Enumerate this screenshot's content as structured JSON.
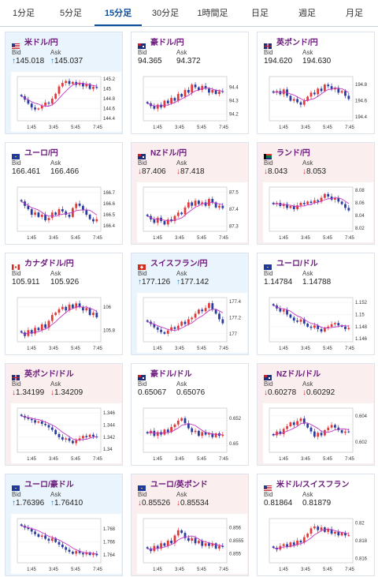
{
  "tabs": [
    "1分足",
    "5分足",
    "15分足",
    "30分足",
    "1時間足",
    "日足",
    "週足",
    "月足"
  ],
  "active_tab": 2,
  "labels": {
    "bid": "Bid",
    "ask": "Ask"
  },
  "x_ticks": [
    "1:45",
    "3:45",
    "5:45",
    "7:45"
  ],
  "colors": {
    "up": "#1a78c2",
    "down": "#d0312d",
    "bull": "#e23a3a",
    "bear": "#2b3ca0",
    "ma_long": "#c436c4",
    "ma_short": "#4a9a7a"
  },
  "pairs": [
    {
      "name": "米ドル/円",
      "flag": "us",
      "bid": "145.018",
      "ask": "145.037",
      "dir": "up",
      "bg": "up",
      "yticks": [
        "145.2",
        "145",
        "144.8",
        "144.6",
        "144.4"
      ],
      "ylim": [
        144.35,
        145.25
      ],
      "closes": [
        144.85,
        144.78,
        144.7,
        144.62,
        144.58,
        144.6,
        144.66,
        144.72,
        144.7,
        144.8,
        144.9,
        145.05,
        145.12,
        145.16,
        145.1,
        145.14,
        145.08,
        145.12,
        145.05,
        145.1,
        145.0,
        145.04,
        145.02
      ]
    },
    {
      "name": "豪ドル/円",
      "flag": "au",
      "bid": "94.365",
      "ask": "94.372",
      "dir": "none",
      "bg": "flat",
      "yticks": [
        "94.4",
        "94.3",
        "94.2"
      ],
      "ylim": [
        94.15,
        94.48
      ],
      "closes": [
        94.28,
        94.26,
        94.24,
        94.27,
        94.25,
        94.3,
        94.28,
        94.32,
        94.3,
        94.35,
        94.33,
        94.38,
        94.36,
        94.42,
        94.4,
        94.38,
        94.41,
        94.39,
        94.36,
        94.38,
        94.35,
        94.37,
        94.365
      ]
    },
    {
      "name": "英ポンド/円",
      "flag": "uk",
      "bid": "194.620",
      "ask": "194.630",
      "dir": "none",
      "bg": "flat",
      "yticks": [
        "194.8",
        "194.6",
        "194.4"
      ],
      "ylim": [
        194.35,
        194.9
      ],
      "closes": [
        194.7,
        194.72,
        194.68,
        194.74,
        194.66,
        194.6,
        194.62,
        194.58,
        194.55,
        194.6,
        194.65,
        194.7,
        194.68,
        194.75,
        194.72,
        194.8,
        194.78,
        194.74,
        194.76,
        194.7,
        194.72,
        194.66,
        194.62
      ]
    },
    {
      "name": "ユーロ/円",
      "flag": "eu",
      "bid": "166.461",
      "ask": "166.466",
      "dir": "none",
      "bg": "flat",
      "yticks": [
        "166.7",
        "166.6",
        "166.5",
        "166.4"
      ],
      "ylim": [
        166.35,
        166.75
      ],
      "closes": [
        166.62,
        166.58,
        166.55,
        166.5,
        166.52,
        166.48,
        166.5,
        166.45,
        166.47,
        166.52,
        166.5,
        166.55,
        166.53,
        166.5,
        166.48,
        166.56,
        166.6,
        166.58,
        166.54,
        166.5,
        166.46,
        166.44,
        166.46
      ]
    },
    {
      "name": "NZドル/円",
      "flag": "nz",
      "bid": "87.406",
      "ask": "87.418",
      "dir": "down",
      "bg": "down",
      "yticks": [
        "87.5",
        "87.4",
        "87.3"
      ],
      "ylim": [
        87.27,
        87.53
      ],
      "closes": [
        87.36,
        87.34,
        87.32,
        87.35,
        87.33,
        87.31,
        87.34,
        87.33,
        87.36,
        87.38,
        87.37,
        87.41,
        87.44,
        87.42,
        87.45,
        87.43,
        87.44,
        87.42,
        87.46,
        87.44,
        87.41,
        87.42,
        87.406
      ]
    },
    {
      "name": "ランド/円",
      "flag": "za",
      "bid": "8.043",
      "ask": "8.053",
      "dir": "down",
      "bg": "down",
      "yticks": [
        "8.08",
        "8.06",
        "8.04",
        "8.02"
      ],
      "ylim": [
        8.015,
        8.085
      ],
      "closes": [
        8.058,
        8.06,
        8.055,
        8.058,
        8.052,
        8.055,
        8.05,
        8.056,
        8.06,
        8.058,
        8.062,
        8.06,
        8.064,
        8.062,
        8.068,
        8.074,
        8.07,
        8.065,
        8.068,
        8.062,
        8.058,
        8.052,
        8.048
      ]
    },
    {
      "name": "カナダドル/円",
      "flag": "ca",
      "bid": "105.911",
      "ask": "105.926",
      "dir": "none",
      "bg": "flat",
      "yticks": [
        "106",
        "105.8"
      ],
      "ylim": [
        105.7,
        106.08
      ],
      "closes": [
        105.78,
        105.75,
        105.8,
        105.77,
        105.82,
        105.8,
        105.85,
        105.82,
        105.88,
        105.93,
        105.95,
        105.98,
        106.0,
        105.97,
        106.02,
        105.99,
        106.03,
        106.0,
        105.97,
        105.99,
        105.93,
        105.95,
        105.91
      ]
    },
    {
      "name": "スイスフラン/円",
      "flag": "ch",
      "bid": "177.126",
      "ask": "177.142",
      "dir": "up",
      "bg": "up",
      "yticks": [
        "177.4",
        "177.2",
        "177"
      ],
      "ylim": [
        176.9,
        177.45
      ],
      "closes": [
        177.15,
        177.12,
        177.08,
        177.05,
        177.02,
        177.0,
        177.04,
        177.08,
        177.06,
        177.1,
        177.15,
        177.12,
        177.18,
        177.2,
        177.25,
        177.3,
        177.28,
        177.32,
        177.38,
        177.3,
        177.25,
        177.18,
        177.13
      ]
    },
    {
      "name": "ユーロ/ドル",
      "flag": "eu",
      "bid": "1.14784",
      "ask": "1.14788",
      "dir": "none",
      "bg": "flat",
      "yticks": [
        "1.152",
        "1.15",
        "1.148",
        "1.146"
      ],
      "ylim": [
        1.1455,
        1.1528
      ],
      "closes": [
        1.1515,
        1.151,
        1.1505,
        1.1508,
        1.15,
        1.1495,
        1.149,
        1.1488,
        1.1492,
        1.1485,
        1.148,
        1.1478,
        1.1482,
        1.1476,
        1.1472,
        1.1478,
        1.148,
        1.1484,
        1.1486,
        1.1482,
        1.148,
        1.1476,
        1.1478
      ]
    },
    {
      "name": "英ポンド/ドル",
      "flag": "uk",
      "bid": "1.34199",
      "ask": "1.34209",
      "dir": "down",
      "bg": "down",
      "yticks": [
        "1.346",
        "1.344",
        "1.342",
        "1.34"
      ],
      "ylim": [
        1.3395,
        1.3468
      ],
      "closes": [
        1.3455,
        1.3452,
        1.345,
        1.3448,
        1.3444,
        1.3446,
        1.3442,
        1.344,
        1.3436,
        1.3432,
        1.3425,
        1.342,
        1.3416,
        1.3418,
        1.3414,
        1.341,
        1.3415,
        1.3418,
        1.3422,
        1.342,
        1.3424,
        1.3421,
        1.342
      ]
    },
    {
      "name": "豪ドル/ドル",
      "flag": "au",
      "bid": "0.65067",
      "ask": "0.65076",
      "dir": "none",
      "bg": "flat",
      "yticks": [
        "0.652",
        "0.65"
      ],
      "ylim": [
        0.6493,
        0.6528
      ],
      "closes": [
        0.6508,
        0.651,
        0.6506,
        0.6509,
        0.6507,
        0.6511,
        0.6509,
        0.6513,
        0.6515,
        0.6518,
        0.652,
        0.6516,
        0.6512,
        0.6509,
        0.651,
        0.6506,
        0.6509,
        0.6507,
        0.6508,
        0.6505,
        0.6508,
        0.6506,
        0.6507
      ]
    },
    {
      "name": "NZドル/ドル",
      "flag": "nz",
      "bid": "0.60278",
      "ask": "0.60292",
      "dir": "down",
      "bg": "down",
      "yticks": [
        "0.604",
        "0.602"
      ],
      "ylim": [
        0.6012,
        0.6046
      ],
      "closes": [
        0.6025,
        0.6028,
        0.6026,
        0.603,
        0.6032,
        0.6035,
        0.6033,
        0.6036,
        0.6038,
        0.6034,
        0.6031,
        0.6028,
        0.6024,
        0.6027,
        0.6025,
        0.6029,
        0.6031,
        0.6033,
        0.6031,
        0.6029,
        0.6027,
        0.6028,
        0.60278
      ]
    },
    {
      "name": "ユーロ/豪ドル",
      "flag": "eu",
      "bid": "1.76396",
      "ask": "1.76410",
      "dir": "up",
      "bg": "up",
      "yticks": [
        "1.768",
        "1.766",
        "1.764"
      ],
      "ylim": [
        1.7628,
        1.7696
      ],
      "closes": [
        1.7685,
        1.7682,
        1.768,
        1.7676,
        1.7672,
        1.7668,
        1.767,
        1.7665,
        1.7662,
        1.7666,
        1.766,
        1.7656,
        1.7652,
        1.7648,
        1.7645,
        1.7642,
        1.7646,
        1.7643,
        1.7641,
        1.7644,
        1.764,
        1.7642,
        1.76396
      ]
    },
    {
      "name": "ユーロ/英ポンド",
      "flag": "eu",
      "bid": "0.85526",
      "ask": "0.85534",
      "dir": "down",
      "bg": "down",
      "yticks": [
        "0.856",
        "0.8555",
        "0.855"
      ],
      "ylim": [
        0.85465,
        0.85635
      ],
      "closes": [
        0.8552,
        0.8551,
        0.8553,
        0.8552,
        0.8554,
        0.8553,
        0.8555,
        0.8554,
        0.8557,
        0.8559,
        0.8558,
        0.8556,
        0.8555,
        0.8556,
        0.8554,
        0.8555,
        0.8553,
        0.8554,
        0.8553,
        0.8554,
        0.8552,
        0.8553,
        0.85526
      ]
    },
    {
      "name": "米ドル/スイスフラン",
      "flag": "us",
      "bid": "0.81864",
      "ask": "0.81879",
      "dir": "none",
      "bg": "flat",
      "yticks": [
        "0.82",
        "0.818",
        "0.816"
      ],
      "ylim": [
        0.8155,
        0.8205
      ],
      "closes": [
        0.8172,
        0.817,
        0.8174,
        0.8176,
        0.8173,
        0.8178,
        0.8175,
        0.818,
        0.8178,
        0.8184,
        0.8188,
        0.8194,
        0.8196,
        0.8192,
        0.8195,
        0.819,
        0.8193,
        0.8188,
        0.819,
        0.8186,
        0.8189,
        0.8186,
        0.81864
      ]
    }
  ]
}
